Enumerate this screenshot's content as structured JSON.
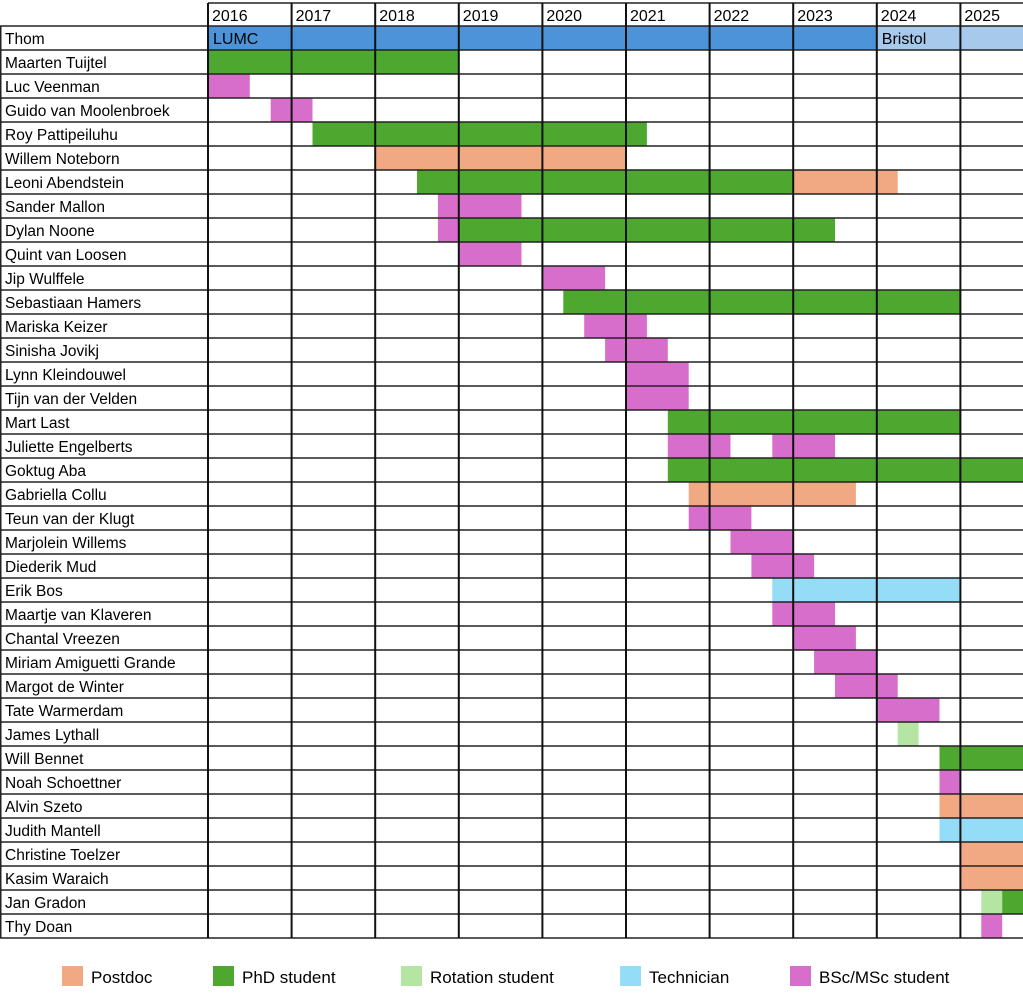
{
  "chart_data": {
    "type": "gantt",
    "x_range": [
      2016,
      2025.75
    ],
    "years": [
      "2016",
      "2017",
      "2018",
      "2019",
      "2020",
      "2021",
      "2022",
      "2023",
      "2024",
      "2025"
    ],
    "colors": {
      "Postdoc": "#f1a983",
      "PhD student": "#4ea72e",
      "Rotation student": "#b4e5a2",
      "Technician": "#95dcf7",
      "BSc/MSc student": "#d86ecc",
      "LUMC": "#4d93d9",
      "Bristol": "#a6c9ec"
    },
    "legend": [
      "Postdoc",
      "PhD student",
      "Rotation student",
      "Technician",
      "BSc/MSc student"
    ],
    "legend_placement": "bottom",
    "rows": [
      {
        "name": "Thom",
        "bars": [
          {
            "role": "LUMC",
            "start": 2016,
            "end": 2024,
            "label": "LUMC"
          },
          {
            "role": "Bristol",
            "start": 2024,
            "end": 2025.75,
            "label": "Bristol"
          }
        ]
      },
      {
        "name": "Maarten Tuijtel",
        "bars": [
          {
            "role": "PhD student",
            "start": 2016,
            "end": 2019
          }
        ]
      },
      {
        "name": "Luc Veenman",
        "bars": [
          {
            "role": "BSc/MSc student",
            "start": 2016,
            "end": 2016.5
          }
        ]
      },
      {
        "name": "Guido van Moolenbroek",
        "bars": [
          {
            "role": "BSc/MSc student",
            "start": 2016.75,
            "end": 2017.25
          }
        ]
      },
      {
        "name": "Roy Pattipeiluhu",
        "bars": [
          {
            "role": "PhD student",
            "start": 2017.25,
            "end": 2021.25
          }
        ]
      },
      {
        "name": "Willem Noteborn",
        "bars": [
          {
            "role": "Postdoc",
            "start": 2018,
            "end": 2021
          }
        ]
      },
      {
        "name": "Leoni Abendstein",
        "bars": [
          {
            "role": "PhD student",
            "start": 2018.5,
            "end": 2023
          },
          {
            "role": "Postdoc",
            "start": 2023,
            "end": 2024.25
          }
        ]
      },
      {
        "name": "Sander Mallon",
        "bars": [
          {
            "role": "BSc/MSc student",
            "start": 2018.75,
            "end": 2019.75
          }
        ]
      },
      {
        "name": "Dylan Noone",
        "bars": [
          {
            "role": "BSc/MSc student",
            "start": 2018.75,
            "end": 2019
          },
          {
            "role": "PhD student",
            "start": 2019,
            "end": 2023.5
          }
        ]
      },
      {
        "name": "Quint van Loosen",
        "bars": [
          {
            "role": "BSc/MSc student",
            "start": 2019,
            "end": 2019.75
          }
        ]
      },
      {
        "name": "Jip Wulffele",
        "bars": [
          {
            "role": "BSc/MSc student",
            "start": 2020,
            "end": 2020.75
          }
        ]
      },
      {
        "name": "Sebastiaan Hamers",
        "bars": [
          {
            "role": "PhD student",
            "start": 2020.25,
            "end": 2025
          }
        ]
      },
      {
        "name": "Mariska Keizer",
        "bars": [
          {
            "role": "BSc/MSc student",
            "start": 2020.5,
            "end": 2021.25
          }
        ]
      },
      {
        "name": "Sinisha Jovikj",
        "bars": [
          {
            "role": "BSc/MSc student",
            "start": 2020.75,
            "end": 2021.5
          }
        ]
      },
      {
        "name": "Lynn Kleindouwel",
        "bars": [
          {
            "role": "BSc/MSc student",
            "start": 2021,
            "end": 2021.75
          }
        ]
      },
      {
        "name": "Tijn van der Velden",
        "bars": [
          {
            "role": "BSc/MSc student",
            "start": 2021,
            "end": 2021.75
          }
        ]
      },
      {
        "name": "Mart Last",
        "bars": [
          {
            "role": "PhD student",
            "start": 2021.5,
            "end": 2025
          }
        ]
      },
      {
        "name": "Juliette Engelberts",
        "bars": [
          {
            "role": "BSc/MSc student",
            "start": 2021.5,
            "end": 2022.25
          },
          {
            "role": "BSc/MSc student",
            "start": 2022.75,
            "end": 2023.5
          }
        ]
      },
      {
        "name": "Goktug Aba",
        "bars": [
          {
            "role": "PhD student",
            "start": 2021.5,
            "end": 2025.75
          }
        ]
      },
      {
        "name": "Gabriella Collu",
        "bars": [
          {
            "role": "Postdoc",
            "start": 2021.75,
            "end": 2023.75
          }
        ]
      },
      {
        "name": "Teun van der Klugt",
        "bars": [
          {
            "role": "BSc/MSc student",
            "start": 2021.75,
            "end": 2022.5
          }
        ]
      },
      {
        "name": "Marjolein Willems",
        "bars": [
          {
            "role": "BSc/MSc student",
            "start": 2022.25,
            "end": 2023
          }
        ]
      },
      {
        "name": "Diederik Mud",
        "bars": [
          {
            "role": "BSc/MSc student",
            "start": 2022.5,
            "end": 2023.25
          }
        ]
      },
      {
        "name": "Erik Bos",
        "bars": [
          {
            "role": "Technician",
            "start": 2022.75,
            "end": 2025
          }
        ]
      },
      {
        "name": "Maartje van Klaveren",
        "bars": [
          {
            "role": "BSc/MSc student",
            "start": 2022.75,
            "end": 2023.5
          }
        ]
      },
      {
        "name": "Chantal Vreezen",
        "bars": [
          {
            "role": "BSc/MSc student",
            "start": 2023,
            "end": 2023.75
          }
        ]
      },
      {
        "name": "Miriam Amiguetti Grande",
        "bars": [
          {
            "role": "BSc/MSc student",
            "start": 2023.25,
            "end": 2024
          }
        ]
      },
      {
        "name": "Margot de Winter",
        "bars": [
          {
            "role": "BSc/MSc student",
            "start": 2023.5,
            "end": 2024.25
          }
        ]
      },
      {
        "name": "Tate Warmerdam",
        "bars": [
          {
            "role": "BSc/MSc student",
            "start": 2024,
            "end": 2024.75
          }
        ]
      },
      {
        "name": "James Lythall",
        "bars": [
          {
            "role": "Rotation student",
            "start": 2024.25,
            "end": 2024.5
          }
        ]
      },
      {
        "name": "Will Bennet",
        "bars": [
          {
            "role": "PhD student",
            "start": 2024.75,
            "end": 2025.75
          }
        ]
      },
      {
        "name": "Noah Schoettner",
        "bars": [
          {
            "role": "BSc/MSc student",
            "start": 2024.75,
            "end": 2025
          }
        ]
      },
      {
        "name": "Alvin Szeto",
        "bars": [
          {
            "role": "Postdoc",
            "start": 2024.75,
            "end": 2025.75
          }
        ]
      },
      {
        "name": "Judith Mantell",
        "bars": [
          {
            "role": "Technician",
            "start": 2024.75,
            "end": 2025.75
          }
        ]
      },
      {
        "name": "Christine Toelzer",
        "bars": [
          {
            "role": "Postdoc",
            "start": 2025,
            "end": 2025.75
          }
        ]
      },
      {
        "name": "Kasim Waraich",
        "bars": [
          {
            "role": "Postdoc",
            "start": 2025,
            "end": 2025.75
          }
        ]
      },
      {
        "name": "Jan Gradon",
        "bars": [
          {
            "role": "Rotation student",
            "start": 2025.25,
            "end": 2025.5
          },
          {
            "role": "PhD student",
            "start": 2025.5,
            "end": 2025.75
          }
        ]
      },
      {
        "name": "Thy Doan",
        "bars": [
          {
            "role": "BSc/MSc student",
            "start": 2025.25,
            "end": 2025.5
          }
        ]
      }
    ]
  }
}
